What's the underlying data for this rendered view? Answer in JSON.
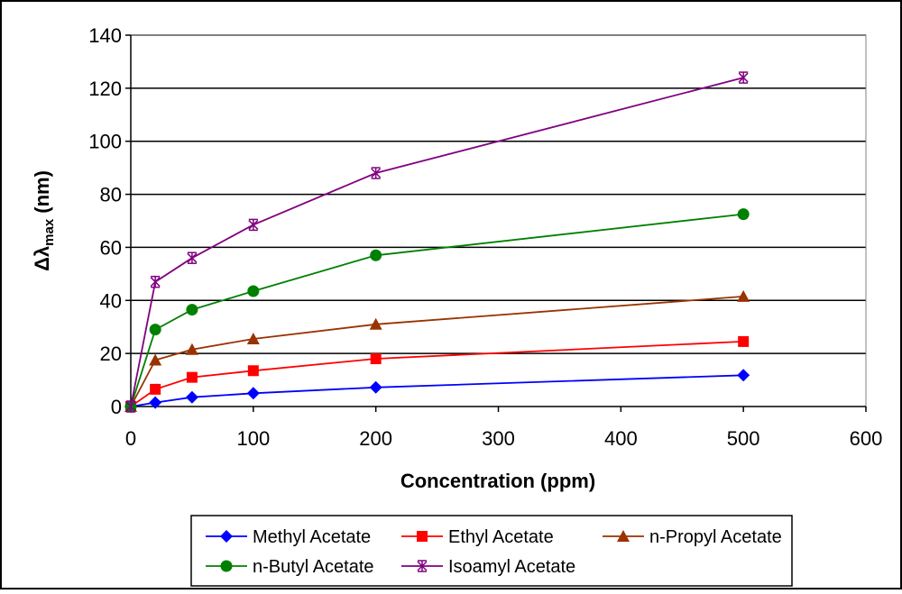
{
  "chart_data": {
    "type": "line",
    "title": "",
    "xlabel": "Concentration (ppm)",
    "ylabel_main": "Δλ",
    "ylabel_sub": "max",
    "ylabel_unit": " (nm)",
    "xlim": [
      0,
      600
    ],
    "ylim": [
      0,
      140
    ],
    "xticks": [
      0,
      100,
      200,
      300,
      400,
      500,
      600
    ],
    "yticks": [
      0,
      20,
      40,
      60,
      80,
      100,
      120,
      140
    ],
    "grid": "horizontal",
    "legend_position": "bottom",
    "x": [
      0,
      20,
      50,
      100,
      200,
      500
    ],
    "series": [
      {
        "name": "Methyl Acetate",
        "color": "#0000ff",
        "marker": "diamond",
        "values": [
          0,
          1.5,
          3.5,
          5,
          7.2,
          11.8
        ]
      },
      {
        "name": "Ethyl Acetate",
        "color": "#ff0000",
        "marker": "square",
        "values": [
          0,
          6.5,
          11,
          13.5,
          18,
          24.5
        ]
      },
      {
        "name": "n-Propyl Acetate",
        "color": "#993300",
        "marker": "triangle",
        "values": [
          0,
          17.5,
          21.5,
          25.5,
          31,
          41.5
        ]
      },
      {
        "name": "n-Butyl Acetate",
        "color": "#008000",
        "marker": "circle",
        "values": [
          0,
          29,
          36.5,
          43.5,
          57,
          72.5
        ]
      },
      {
        "name": "Isoamyl Acetate",
        "color": "#800080",
        "marker": "star",
        "values": [
          0,
          47,
          56,
          68.5,
          88,
          124
        ]
      }
    ]
  }
}
